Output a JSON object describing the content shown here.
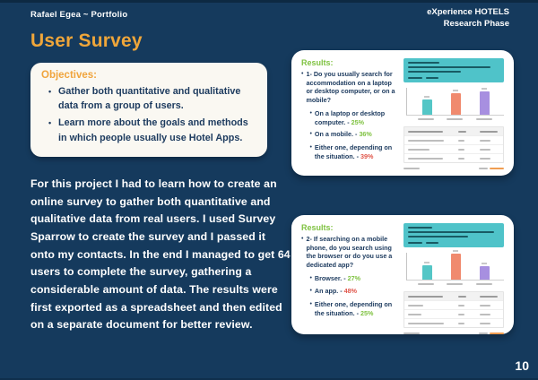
{
  "colors": {
    "background": "#153a5d",
    "accent_orange": "#efa63a",
    "text_white": "#ffffff",
    "text_navy": "#1c3a5e",
    "green": "#7fc241",
    "red": "#e0564a",
    "teal": "#4fc3c9",
    "salmon": "#f08a6e",
    "purple": "#a78fe0",
    "objectives_bg": "#faf8f2",
    "card_bg": "#ffffff"
  },
  "header": {
    "left": "Rafael Egea ~ Portfolio",
    "right_line1": "eXperience HOTELS",
    "right_line2": "Research Phase"
  },
  "title": "User Survey",
  "objectives": {
    "heading": "Objectives:",
    "items": [
      "Gather both quantitative and qualitative data from a group of users.",
      "Learn more about the goals and methods in which people usually use Hotel Apps."
    ]
  },
  "paragraph": "For this project I had to learn how to create an online survey to gather both quantitative and qualitative data from real users. I used Survey Sparrow to create the survey and I passed it onto my contacts. In the end I managed to get 64 users to complete the survey, gathering a considerable amount of data. The results were first exported as a spreadsheet and then edited on a separate document for better review.",
  "cards": [
    {
      "heading": "Results:",
      "question": "1- Do you usually search for accommodation on a laptop or desktop computer, or on a mobile?",
      "answers": [
        {
          "label": "On a laptop or desktop computer. -",
          "value": "25%",
          "color": "#7fc241"
        },
        {
          "label": "On a mobile. -",
          "value": "36%",
          "color": "#7fc241"
        },
        {
          "label": "Either one, depending on the situation. -",
          "value": "39%",
          "color": "#e0564a"
        }
      ],
      "chart": {
        "type": "bar",
        "categories": [
          "On a laptop or desktop computer.",
          "On a mobile.",
          "Either one, depending on the situation."
        ],
        "values": [
          25,
          36,
          39
        ],
        "colors": [
          "#54c6c6",
          "#f08a6e",
          "#a78fe0"
        ],
        "ylim": [
          0,
          45
        ]
      }
    },
    {
      "heading": "Results:",
      "question": "2- If searching on a mobile phone, do you search using the browser or do you use a dedicated app?",
      "answers": [
        {
          "label": "Browser. -",
          "value": "27%",
          "color": "#7fc241"
        },
        {
          "label": "An app. -",
          "value": "48%",
          "color": "#e0564a"
        },
        {
          "label": "Either one, depending on the situation. -",
          "value": "25%",
          "color": "#7fc241"
        }
      ],
      "chart": {
        "type": "bar",
        "categories": [
          "Browser.",
          "An app.",
          "Either one, depending on the situation."
        ],
        "values": [
          27,
          48,
          25
        ],
        "colors": [
          "#54c6c6",
          "#f08a6e",
          "#a78fe0"
        ],
        "ylim": [
          0,
          50
        ]
      }
    }
  ],
  "page_number": "10"
}
